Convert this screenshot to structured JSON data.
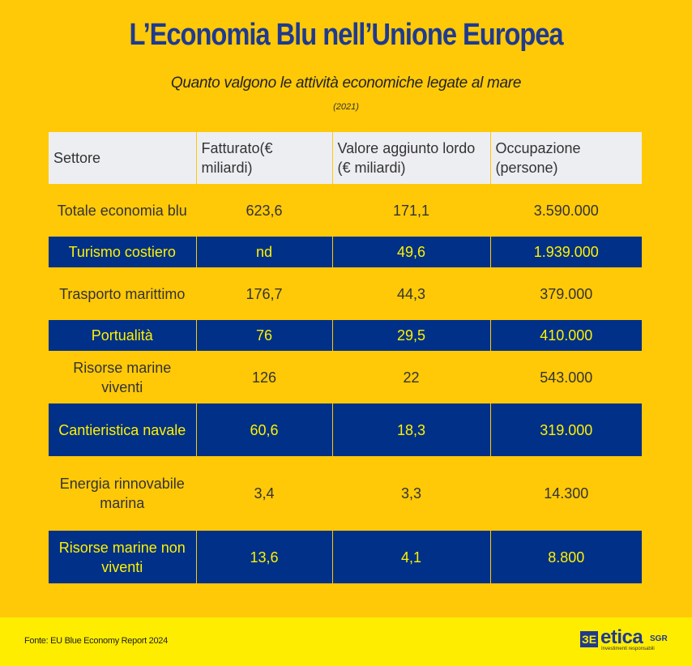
{
  "header": {
    "title": "L’Economia Blu nell’Unione Europea",
    "subtitle": "Quanto valgono le  attività economiche legate al mare",
    "year": "(2021)"
  },
  "table": {
    "columns": [
      "Settore",
      "Fatturato(€ miliardi)",
      "Valore aggiunto lordo (€ miliardi)",
      "Occupazione (persone)"
    ],
    "rows": [
      {
        "settore": "Totale economia blu",
        "fatturato": "623,6",
        "valore": "171,1",
        "occupazione": "3.590.000"
      },
      {
        "settore": "Turismo costiero",
        "fatturato": "nd",
        "valore": "49,6",
        "occupazione": "1.939.000"
      },
      {
        "settore": "Trasporto marittimo",
        "fatturato": "176,7",
        "valore": "44,3",
        "occupazione": "379.000"
      },
      {
        "settore": "Portualità",
        "fatturato": "76",
        "valore": "29,5",
        "occupazione": "410.000"
      },
      {
        "settore": "Risorse marine viventi",
        "fatturato": "126",
        "valore": "22",
        "occupazione": "543.000"
      },
      {
        "settore": "Cantieristica navale",
        "fatturato": "60,6",
        "valore": "18,3",
        "occupazione": "319.000"
      },
      {
        "settore": "Energia rinnovabile marina",
        "fatturato": "3,4",
        "valore": "3,3",
        "occupazione": "14.300"
      },
      {
        "settore": "Risorse marine non viventi",
        "fatturato": "13,6",
        "valore": "4,1",
        "occupazione": "8.800"
      }
    ]
  },
  "footer": {
    "source": "Fonte: EU Blue Economy Report 2024",
    "logo": {
      "icon": "etica-mark-icon",
      "mark": "ЗЕ",
      "word": "etica",
      "suffix": "SGR",
      "tagline": "Investimenti responsabili"
    }
  },
  "colors": {
    "background": "#FFC907",
    "navy": "#003087",
    "title_blue": "#1F3A8F",
    "highlight_text": "#FFF200",
    "header_bg": "#EDEEF2",
    "footer_bg": "#FFED00"
  }
}
